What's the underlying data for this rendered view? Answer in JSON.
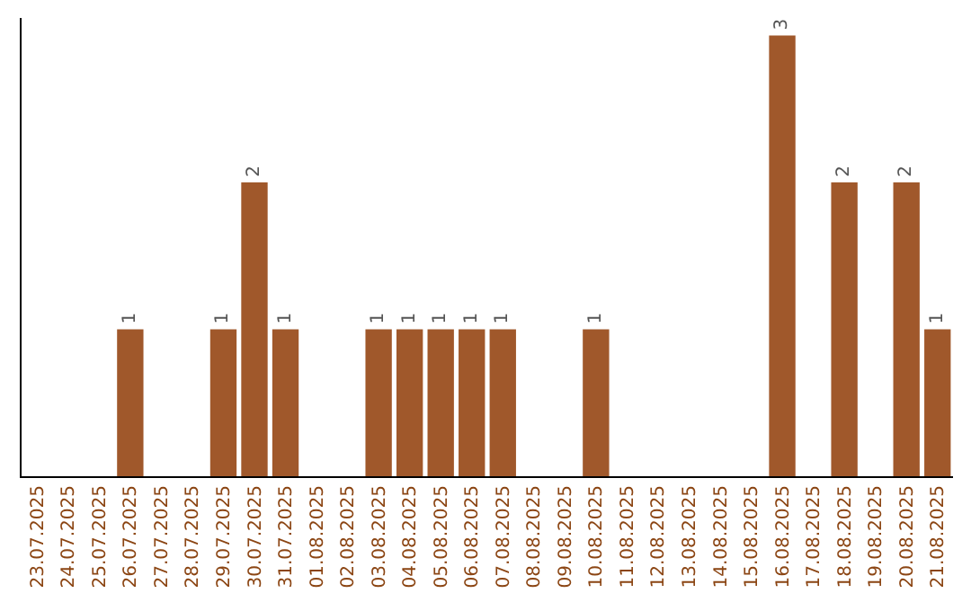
{
  "chart_data": {
    "type": "bar",
    "categories": [
      "23.07.2025",
      "24.07.2025",
      "25.07.2025",
      "26.07.2025",
      "27.07.2025",
      "28.07.2025",
      "29.07.2025",
      "30.07.2025",
      "31.07.2025",
      "01.08.2025",
      "02.08.2025",
      "03.08.2025",
      "04.08.2025",
      "05.08.2025",
      "06.08.2025",
      "07.08.2025",
      "08.08.2025",
      "09.08.2025",
      "10.08.2025",
      "11.08.2025",
      "12.08.2025",
      "13.08.2025",
      "14.08.2025",
      "15.08.2025",
      "16.08.2025",
      "17.08.2025",
      "18.08.2025",
      "19.08.2025",
      "20.08.2025",
      "21.08.2025"
    ],
    "values": [
      0,
      0,
      0,
      1,
      0,
      0,
      1,
      2,
      1,
      0,
      0,
      1,
      1,
      1,
      1,
      1,
      0,
      0,
      1,
      0,
      0,
      0,
      0,
      0,
      3,
      0,
      2,
      0,
      2,
      1
    ],
    "value_labels": [
      null,
      null,
      null,
      "1",
      null,
      null,
      "1",
      "2",
      "1",
      null,
      null,
      "1",
      "1",
      "1",
      "1",
      "1",
      null,
      null,
      "1",
      null,
      null,
      null,
      null,
      null,
      "3",
      null,
      "2",
      null,
      "2",
      "1"
    ],
    "color": "#a0582b",
    "ylim": [
      0,
      3.12
    ],
    "tick_labels": "x",
    "grid": false,
    "legend": false
  }
}
